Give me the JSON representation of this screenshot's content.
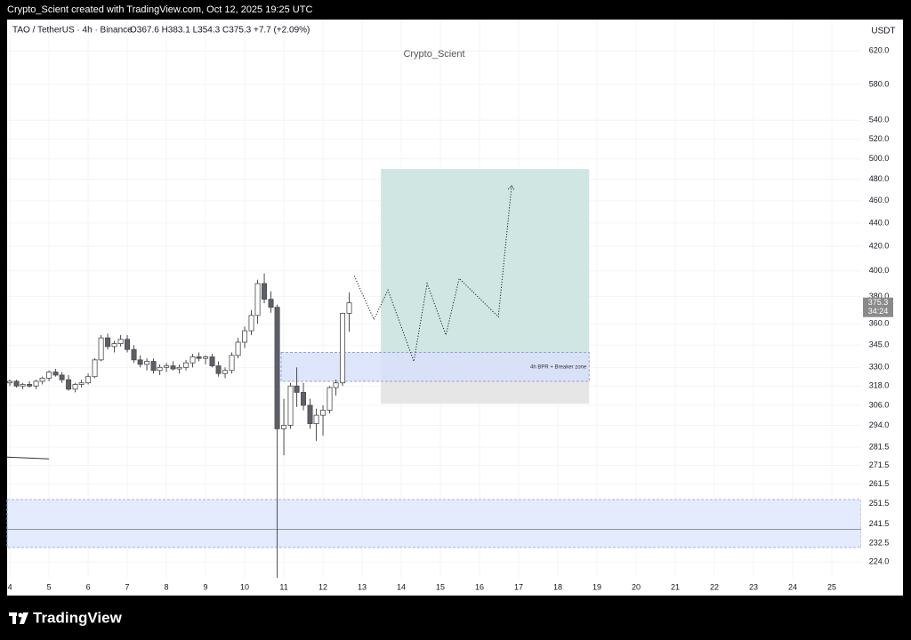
{
  "header": {
    "caption": "Crypto_Scient created with TradingView.com, Oct 12, 2025 19:25 UTC",
    "symbol": "TAO / TetherUS · 4h · Binance",
    "ohlc": "O367.6 H383.1 L354.3 C375.3 +7.7 (+2.09%)",
    "watermark": "Crypto_Scient",
    "currency": "USDT",
    "countdown": "34:24",
    "logo": "TradingView"
  },
  "chart_data": {
    "type": "candlestick",
    "log_scale": true,
    "grid": true,
    "up_color": "#ffffff",
    "down_color": "#5d606b",
    "x": [
      4,
      4.17,
      4.33,
      4.5,
      4.67,
      4.83,
      5,
      5.17,
      5.33,
      5.5,
      5.67,
      5.83,
      6,
      6.17,
      6.33,
      6.5,
      6.67,
      6.83,
      7,
      7.17,
      7.33,
      7.5,
      7.67,
      7.83,
      8,
      8.17,
      8.33,
      8.5,
      8.67,
      8.83,
      9,
      9.17,
      9.33,
      9.5,
      9.67,
      9.83,
      10,
      10.17,
      10.33,
      10.5,
      10.67,
      10.83,
      11,
      11.17,
      11.33,
      11.5,
      11.67,
      11.83,
      12,
      12.17,
      12.33,
      12.5,
      12.67
    ],
    "open": [
      320,
      321,
      318,
      319,
      318,
      321,
      323,
      327,
      325,
      322,
      316,
      319,
      320,
      324,
      335,
      350,
      344,
      346,
      349,
      342,
      335,
      332,
      334,
      328,
      330,
      331,
      329,
      330,
      333,
      337,
      336,
      337,
      331,
      326,
      328,
      338,
      347,
      355,
      366,
      390,
      378,
      372,
      292,
      294,
      318,
      314,
      306,
      295,
      300,
      303,
      317,
      320,
      367.6
    ],
    "high": [
      322,
      322,
      320,
      321,
      322,
      324,
      328,
      329,
      327,
      325,
      320,
      322,
      326,
      336,
      352,
      353,
      348,
      352,
      352,
      345,
      338,
      336,
      336,
      332,
      333,
      334,
      332,
      335,
      339,
      340,
      338,
      339,
      334,
      330,
      340,
      350,
      358,
      370,
      393,
      398,
      384,
      374,
      310,
      320,
      330,
      320,
      310,
      304,
      306,
      318,
      322,
      368,
      383.1
    ],
    "low": [
      318,
      317,
      316,
      317,
      316,
      319,
      321,
      324,
      320,
      315,
      314,
      317,
      319,
      323,
      334,
      342,
      340,
      344,
      340,
      333,
      330,
      328,
      326,
      325,
      327,
      328,
      326,
      328,
      330,
      334,
      332,
      330,
      324,
      323,
      326,
      336,
      343,
      352,
      360,
      375,
      368,
      217,
      277,
      292,
      305,
      303,
      292,
      285,
      288,
      301,
      312,
      318,
      354.3
    ],
    "close": [
      321,
      318,
      319,
      318,
      321,
      323,
      327,
      325,
      322,
      316,
      319,
      320,
      324,
      335,
      350,
      344,
      346,
      349,
      342,
      335,
      332,
      334,
      328,
      330,
      331,
      329,
      330,
      333,
      337,
      336,
      337,
      331,
      326,
      328,
      338,
      347,
      355,
      366,
      390,
      378,
      372,
      292,
      294,
      318,
      314,
      306,
      295,
      300,
      303,
      317,
      320,
      367.6,
      375.3
    ],
    "xlim": [
      3.93,
      25.75
    ],
    "xticks": [
      4,
      5,
      6,
      7,
      8,
      9,
      10,
      11,
      12,
      13,
      14,
      15,
      16,
      17,
      18,
      19,
      20,
      21,
      22,
      23,
      24,
      25
    ],
    "ylim": [
      217,
      660
    ],
    "yticks": [
      {
        "value": 620,
        "label": "620.0"
      },
      {
        "value": 580,
        "label": "580.0"
      },
      {
        "value": 540,
        "label": "540.0"
      },
      {
        "value": 520,
        "label": "520.0"
      },
      {
        "value": 500,
        "label": "500.0"
      },
      {
        "value": 480,
        "label": "480.0"
      },
      {
        "value": 460,
        "label": "460.0"
      },
      {
        "value": 440,
        "label": "440.0"
      },
      {
        "value": 420,
        "label": "420.0"
      },
      {
        "value": 400,
        "label": "400.0"
      },
      {
        "value": 380,
        "label": "380.0"
      },
      {
        "value": 360,
        "label": "360.0"
      },
      {
        "value": 345,
        "label": "345.0"
      },
      {
        "value": 330,
        "label": "330.0"
      },
      {
        "value": 318,
        "label": "318.0"
      },
      {
        "value": 306,
        "label": "306.0"
      },
      {
        "value": 294,
        "label": "294.0"
      },
      {
        "value": 281.5,
        "label": "281.5"
      },
      {
        "value": 271.5,
        "label": "271.5"
      },
      {
        "value": 261.5,
        "label": "261.5"
      },
      {
        "value": 251.5,
        "label": "251.5"
      },
      {
        "value": 241.5,
        "label": "241.5"
      },
      {
        "value": 232.5,
        "label": "232.5"
      },
      {
        "value": 224,
        "label": "224.0"
      }
    ],
    "position": {
      "x": [
        13.48,
        18.8
      ],
      "target": 490,
      "entry": 340,
      "stop": 307,
      "target_color": "#cfe6e2",
      "stop_color": "#e6e6e6"
    },
    "zone": {
      "label": "4h BPR + Breaker zone",
      "x": [
        10.93,
        18.8
      ],
      "range": [
        321,
        340
      ],
      "color": "#d6e0fb"
    },
    "lower_zone": {
      "range": [
        230.5,
        253.6
      ],
      "color": "#e3ebfd"
    },
    "hline": 239,
    "trend_line": {
      "x": [
        3.93,
        5.0
      ],
      "y": [
        276,
        275
      ]
    },
    "projection": {
      "x": [
        12.8,
        13.3,
        13.66,
        14.32,
        14.66,
        15.14,
        15.48,
        16.48,
        16.82
      ],
      "y": [
        396,
        363,
        385,
        334,
        390,
        352,
        394,
        365,
        474
      ]
    }
  }
}
